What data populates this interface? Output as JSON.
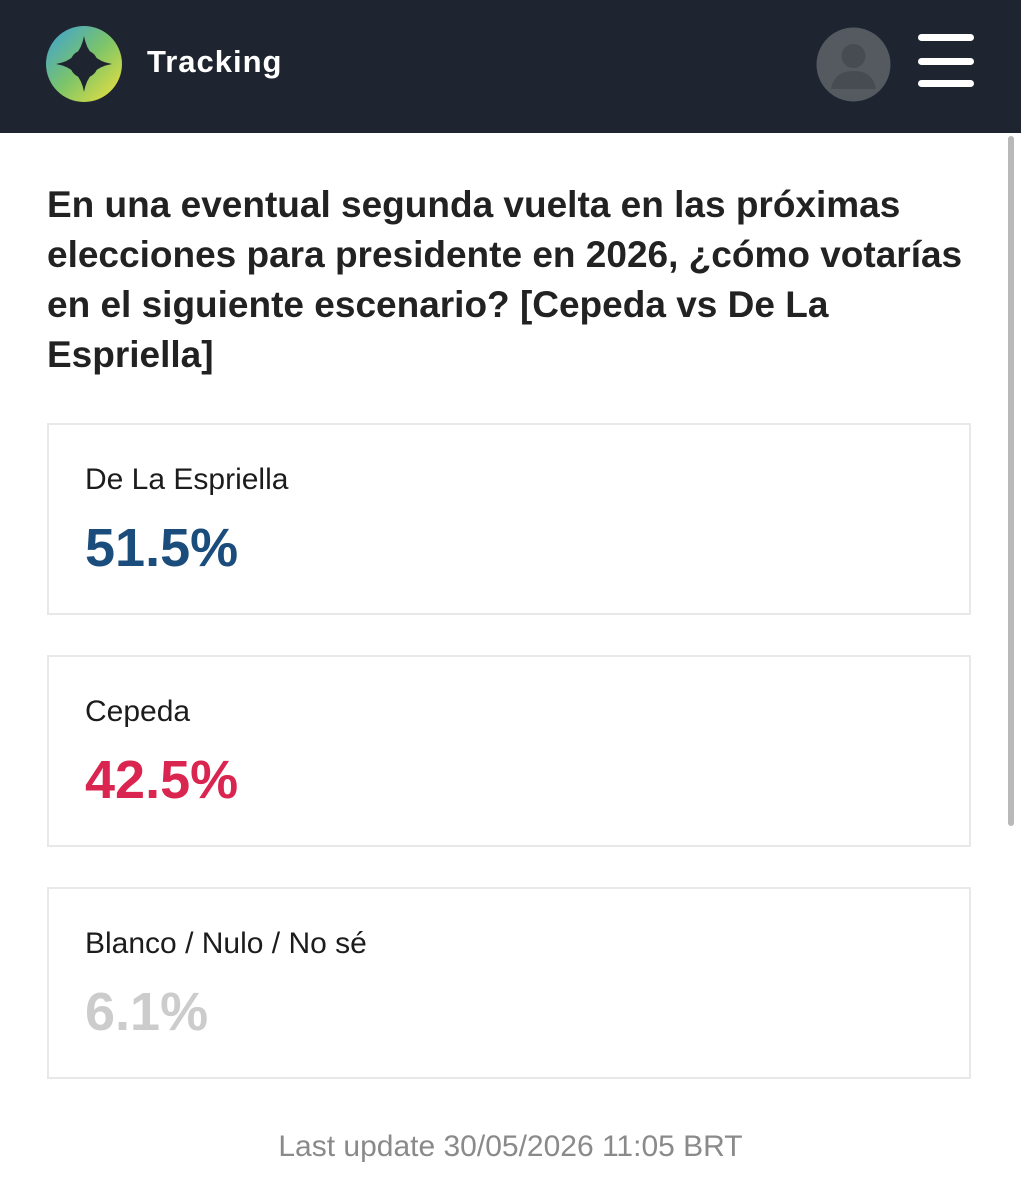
{
  "header": {
    "title": "Tracking"
  },
  "question": "En una eventual segunda vuelta en las próximas elecciones para presidente en 2026, ¿cómo votarías en el siguiente escenario? [Cepeda vs De La Espriella]",
  "results": [
    {
      "name": "De La Espriella",
      "value": "51.5%",
      "color": "#1a4d7c"
    },
    {
      "name": "Cepeda",
      "value": "42.5%",
      "color": "#d9254f"
    },
    {
      "name": "Blanco / Nulo / No sé",
      "value": "6.1%",
      "color": "#cccccc"
    }
  ],
  "footer": "Last update 30/05/2026 11:05 BRT"
}
